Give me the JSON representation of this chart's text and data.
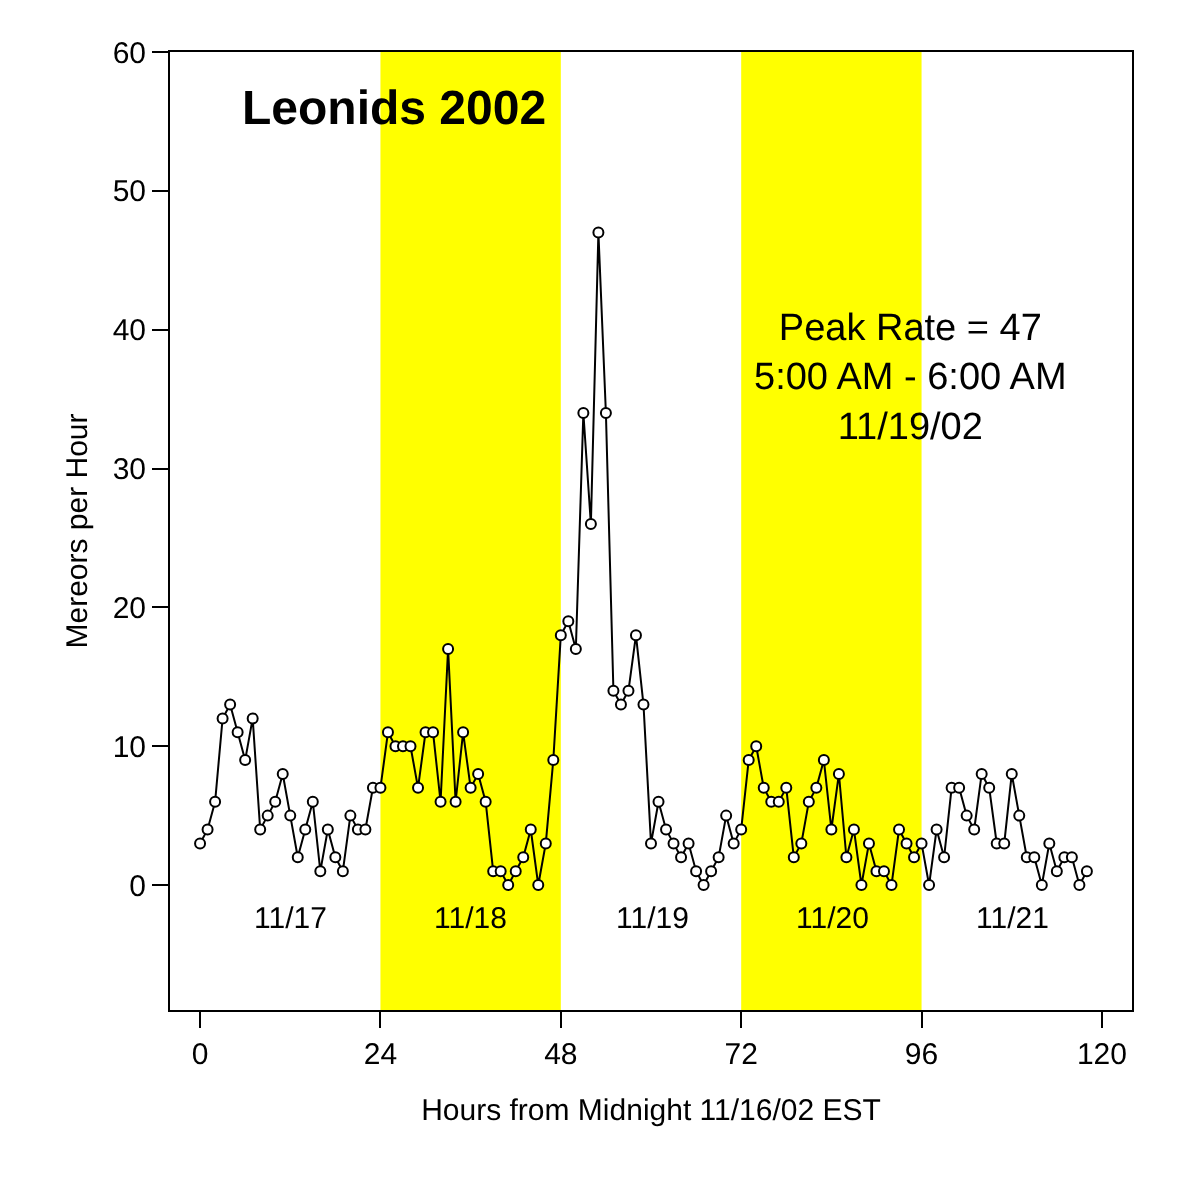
{
  "chart_data": {
    "type": "line",
    "title": "Leonids 2002",
    "xlabel": "Hours from Midnight 11/16/02 EST",
    "ylabel": "Mereors per Hour",
    "x": [
      0,
      1,
      2,
      3,
      4,
      5,
      6,
      7,
      8,
      9,
      10,
      11,
      12,
      13,
      14,
      15,
      16,
      17,
      18,
      19,
      20,
      21,
      22,
      23,
      24,
      25,
      26,
      27,
      28,
      29,
      30,
      31,
      32,
      33,
      34,
      35,
      36,
      37,
      38,
      39,
      40,
      41,
      42,
      43,
      44,
      45,
      46,
      47,
      48,
      49,
      50,
      51,
      52,
      53,
      54,
      55,
      56,
      57,
      58,
      59,
      60,
      61,
      62,
      63,
      64,
      65,
      66,
      67,
      68,
      69,
      70,
      71,
      72,
      73,
      74,
      75,
      76,
      77,
      78,
      79,
      80,
      81,
      82,
      83,
      84,
      85,
      86,
      87,
      88,
      89,
      90,
      91,
      92,
      93,
      94,
      95,
      96,
      97,
      98,
      99,
      100,
      101,
      102,
      103,
      104,
      105,
      106,
      107,
      108,
      109,
      110,
      111,
      112,
      113,
      114,
      115,
      116,
      117,
      118
    ],
    "series": [
      {
        "color": "#000000",
        "values": [
          3,
          4,
          6,
          12,
          13,
          11,
          9,
          12,
          4,
          5,
          6,
          8,
          5,
          2,
          4,
          6,
          1,
          4,
          2,
          1,
          5,
          4,
          4,
          7,
          7,
          11,
          10,
          10,
          10,
          7,
          11,
          11,
          6,
          17,
          6,
          11,
          7,
          8,
          6,
          1,
          1,
          0,
          1,
          2,
          4,
          0,
          3,
          9,
          18,
          19,
          17,
          34,
          26,
          47,
          34,
          14,
          13,
          14,
          18,
          13,
          3,
          6,
          4,
          3,
          2,
          3,
          1,
          0,
          1,
          2,
          5,
          3,
          4,
          9,
          10,
          7,
          6,
          6,
          7,
          2,
          3,
          6,
          7,
          9,
          4,
          8,
          2,
          4,
          0,
          3,
          1,
          1,
          0,
          4,
          3,
          2,
          3,
          0,
          4,
          2,
          7,
          7,
          5,
          4,
          8,
          7,
          3,
          3,
          8,
          5,
          2,
          2,
          0,
          3,
          1,
          2,
          2,
          0,
          1
        ]
      }
    ],
    "xlim": [
      -4,
      124
    ],
    "ylim": [
      -9,
      60
    ],
    "xticks": [
      0,
      24,
      48,
      72,
      96,
      120
    ],
    "yticks": [
      0,
      10,
      20,
      30,
      40,
      50,
      60
    ],
    "grid": false,
    "marker": "circle",
    "line_style": "solid",
    "bands": [
      {
        "axis": "x",
        "from": 24,
        "to": 48,
        "label": "11/18",
        "color": "#ffff00"
      },
      {
        "axis": "x",
        "from": 72,
        "to": 96,
        "label": "11/20",
        "color": "#ffff00"
      }
    ],
    "annotations": [
      "Peak Rate = 47\n5:00 AM - 6:00 AM\n11/19/02",
      "11/17",
      "11/19",
      "11/21"
    ]
  }
}
